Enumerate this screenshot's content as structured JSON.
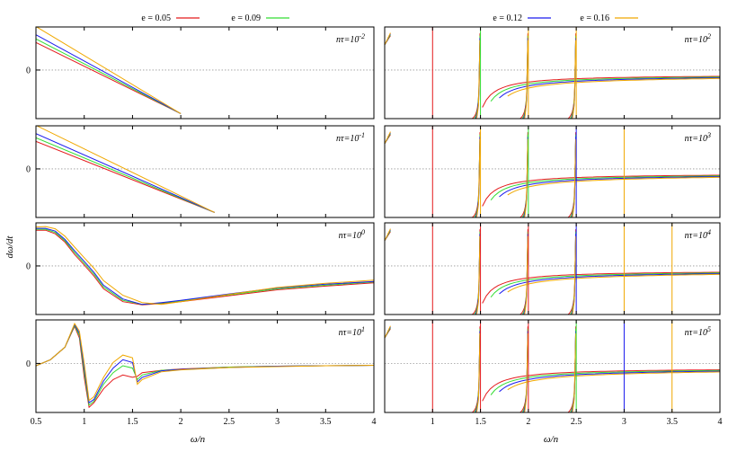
{
  "figure": {
    "ylabel": "dω/dt",
    "xlabel_left": "ω/n",
    "xlabel_right": "ω/n"
  },
  "legend": [
    {
      "label": "e = 0.05",
      "color": "#e41a1c"
    },
    {
      "label": "e = 0.09",
      "color": "#33dd33"
    },
    {
      "label": "e = 0.12",
      "color": "#1a1aee"
    },
    {
      "label": "e = 0.16",
      "color": "#f0a800"
    }
  ],
  "chart_data": [
    {
      "type": "line",
      "panel": "left-1",
      "annotation": "nτ=10",
      "annotation_exp": "-2",
      "xlim": [
        0.5,
        4
      ],
      "ytick_labels": [
        "0"
      ],
      "series": [
        {
          "name": "e = 0.05",
          "x": [
            0.5,
            2.0
          ],
          "y": [
            0.6,
            -0.95
          ]
        },
        {
          "name": "e = 0.09",
          "x": [
            0.5,
            2.0
          ],
          "y": [
            0.68,
            -0.95
          ]
        },
        {
          "name": "e = 0.12",
          "x": [
            0.5,
            2.0
          ],
          "y": [
            0.77,
            -0.95
          ]
        },
        {
          "name": "e = 0.16",
          "x": [
            0.5,
            2.0
          ],
          "y": [
            0.95,
            -0.95
          ]
        }
      ]
    },
    {
      "type": "line",
      "panel": "left-2",
      "annotation": "nτ=10",
      "annotation_exp": "-1",
      "xlim": [
        0.5,
        4
      ],
      "ytick_labels": [
        "0"
      ],
      "series": [
        {
          "name": "e = 0.05",
          "x": [
            0.5,
            2.35
          ],
          "y": [
            0.6,
            -0.95
          ]
        },
        {
          "name": "e = 0.09",
          "x": [
            0.5,
            2.35
          ],
          "y": [
            0.68,
            -0.95
          ]
        },
        {
          "name": "e = 0.12",
          "x": [
            0.5,
            2.35
          ],
          "y": [
            0.77,
            -0.95
          ]
        },
        {
          "name": "e = 0.16",
          "x": [
            0.5,
            2.35
          ],
          "y": [
            0.95,
            -0.95
          ]
        }
      ]
    },
    {
      "type": "line",
      "panel": "left-3",
      "annotation": "nτ=10",
      "annotation_exp": "0",
      "xlim": [
        0.5,
        4
      ],
      "ytick_labels": [
        "0"
      ],
      "series": [
        {
          "name": "e = 0.05",
          "x": [
            0.5,
            0.6,
            0.7,
            0.8,
            0.9,
            1.0,
            1.1,
            1.2,
            1.4,
            1.6,
            1.8,
            2.0,
            2.5,
            3.0,
            3.5,
            4.0
          ],
          "y": [
            0.78,
            0.78,
            0.7,
            0.52,
            0.25,
            0.02,
            -0.22,
            -0.5,
            -0.78,
            -0.85,
            -0.82,
            -0.78,
            -0.65,
            -0.52,
            -0.44,
            -0.37
          ]
        },
        {
          "name": "e = 0.09",
          "x": [
            0.5,
            0.6,
            0.7,
            0.8,
            0.9,
            1.0,
            1.1,
            1.2,
            1.4,
            1.6,
            1.8,
            2.0,
            2.5,
            3.0,
            3.5,
            4.0
          ],
          "y": [
            0.8,
            0.8,
            0.73,
            0.55,
            0.29,
            0.06,
            -0.18,
            -0.46,
            -0.75,
            -0.84,
            -0.81,
            -0.76,
            -0.63,
            -0.5,
            -0.42,
            -0.35
          ]
        },
        {
          "name": "e = 0.12",
          "x": [
            0.5,
            0.6,
            0.7,
            0.8,
            0.9,
            1.0,
            1.1,
            1.2,
            1.4,
            1.6,
            1.8,
            2.0,
            2.5,
            3.0,
            3.5,
            4.0
          ],
          "y": [
            0.82,
            0.82,
            0.76,
            0.58,
            0.33,
            0.1,
            -0.14,
            -0.42,
            -0.72,
            -0.84,
            -0.8,
            -0.75,
            -0.61,
            -0.48,
            -0.4,
            -0.34
          ]
        },
        {
          "name": "e = 0.16",
          "x": [
            0.5,
            0.6,
            0.7,
            0.8,
            0.9,
            1.0,
            1.1,
            1.2,
            1.4,
            1.6,
            1.8,
            2.0,
            2.5,
            3.0,
            3.5,
            4.0
          ],
          "y": [
            0.85,
            0.86,
            0.81,
            0.65,
            0.41,
            0.18,
            -0.05,
            -0.32,
            -0.64,
            -0.8,
            -0.84,
            -0.78,
            -0.62,
            -0.47,
            -0.38,
            -0.31
          ]
        }
      ]
    },
    {
      "type": "line",
      "panel": "left-4",
      "annotation": "nτ=10",
      "annotation_exp": "1",
      "xlim": [
        0.5,
        4
      ],
      "xticks": [
        0.5,
        1,
        1.5,
        2,
        2.5,
        3,
        3.5,
        4
      ],
      "xtick_labels": [
        "0.5",
        "1",
        "1.5",
        "2",
        "2.5",
        "3",
        "3.5",
        "4"
      ],
      "ytick_labels": [
        "0"
      ],
      "series": [
        {
          "name": "e = 0.05",
          "x": [
            0.5,
            0.65,
            0.8,
            0.9,
            0.95,
            1.0,
            1.05,
            1.1,
            1.2,
            1.3,
            1.4,
            1.5,
            1.55,
            1.6,
            1.8,
            2.0,
            2.5,
            3.0,
            3.5,
            4.0
          ],
          "y": [
            -0.05,
            0.08,
            0.35,
            0.8,
            0.55,
            -0.3,
            -0.95,
            -0.85,
            -0.55,
            -0.35,
            -0.25,
            -0.3,
            -0.28,
            -0.2,
            -0.15,
            -0.12,
            -0.08,
            -0.06,
            -0.05,
            -0.04
          ]
        },
        {
          "name": "e = 0.09",
          "x": [
            0.5,
            0.65,
            0.8,
            0.9,
            0.95,
            1.0,
            1.05,
            1.1,
            1.2,
            1.3,
            1.4,
            1.5,
            1.55,
            1.6,
            1.8,
            2.0,
            2.5,
            3.0,
            3.5,
            4.0
          ],
          "y": [
            -0.05,
            0.08,
            0.35,
            0.82,
            0.6,
            -0.2,
            -0.9,
            -0.82,
            -0.45,
            -0.2,
            -0.05,
            -0.1,
            -0.35,
            -0.25,
            -0.15,
            -0.13,
            -0.08,
            -0.06,
            -0.05,
            -0.04
          ]
        },
        {
          "name": "e = 0.12",
          "x": [
            0.5,
            0.65,
            0.8,
            0.9,
            0.95,
            1.0,
            1.05,
            1.1,
            1.2,
            1.3,
            1.4,
            1.5,
            1.55,
            1.6,
            1.8,
            2.0,
            2.5,
            3.0,
            3.5,
            4.0
          ],
          "y": [
            -0.05,
            0.08,
            0.35,
            0.84,
            0.65,
            -0.1,
            -0.85,
            -0.78,
            -0.38,
            -0.1,
            0.08,
            0.02,
            -0.4,
            -0.3,
            -0.16,
            -0.13,
            -0.09,
            -0.06,
            -0.05,
            -0.04
          ]
        },
        {
          "name": "e = 0.16",
          "x": [
            0.5,
            0.65,
            0.8,
            0.9,
            0.95,
            1.0,
            1.05,
            1.1,
            1.2,
            1.3,
            1.4,
            1.5,
            1.55,
            1.6,
            1.8,
            2.0,
            2.5,
            3.0,
            3.5,
            4.0
          ],
          "y": [
            -0.05,
            0.08,
            0.35,
            0.86,
            0.7,
            0.0,
            -0.8,
            -0.72,
            -0.3,
            0.02,
            0.18,
            0.12,
            -0.45,
            -0.35,
            -0.18,
            -0.14,
            -0.09,
            -0.07,
            -0.05,
            -0.04
          ]
        }
      ]
    },
    {
      "type": "line",
      "panel": "right-1",
      "annotation": "nτ=10",
      "annotation_exp": "2",
      "xlim": [
        0.5,
        4
      ],
      "ytick_labels": [],
      "resonances": [
        {
          "x": 1.0,
          "series": "e = 0.05"
        },
        {
          "x": 1.5,
          "series": "e = 0.09"
        },
        {
          "x": 2.0,
          "series": "e = 0.16"
        },
        {
          "x": 2.5,
          "series": "e = 0.16"
        }
      ]
    },
    {
      "type": "line",
      "panel": "right-2",
      "annotation": "nτ=10",
      "annotation_exp": "3",
      "xlim": [
        0.5,
        4
      ],
      "ytick_labels": [],
      "resonances": [
        {
          "x": 1.0,
          "series": "e = 0.05"
        },
        {
          "x": 1.5,
          "series": "e = 0.16"
        },
        {
          "x": 2.0,
          "series": "e = 0.09"
        },
        {
          "x": 2.5,
          "series": "e = 0.12"
        },
        {
          "x": 3.0,
          "series": "e = 0.16"
        }
      ]
    },
    {
      "type": "line",
      "panel": "right-3",
      "annotation": "nτ=10",
      "annotation_exp": "4",
      "xlim": [
        0.5,
        4
      ],
      "ytick_labels": [],
      "resonances": [
        {
          "x": 1.0,
          "series": "e = 0.05"
        },
        {
          "x": 1.5,
          "series": "e = 0.05"
        },
        {
          "x": 2.0,
          "series": "e = 0.05"
        },
        {
          "x": 2.5,
          "series": "e = 0.12"
        },
        {
          "x": 3.0,
          "series": "e = 0.16"
        },
        {
          "x": 3.5,
          "series": "e = 0.16"
        }
      ]
    },
    {
      "type": "line",
      "panel": "right-4",
      "annotation": "nτ=10",
      "annotation_exp": "5",
      "xlim": [
        0.5,
        4
      ],
      "xticks": [
        1,
        1.5,
        2,
        2.5,
        3,
        3.5,
        4
      ],
      "xtick_labels": [
        "1",
        "1.5",
        "2",
        "2.5",
        "3",
        "3.5",
        "4"
      ],
      "ytick_labels": [],
      "resonances": [
        {
          "x": 1.0,
          "series": "e = 0.05"
        },
        {
          "x": 1.5,
          "series": "e = 0.05"
        },
        {
          "x": 2.0,
          "series": "e = 0.05"
        },
        {
          "x": 2.5,
          "series": "e = 0.09"
        },
        {
          "x": 3.0,
          "series": "e = 0.12"
        },
        {
          "x": 3.5,
          "series": "e = 0.16"
        }
      ]
    }
  ]
}
